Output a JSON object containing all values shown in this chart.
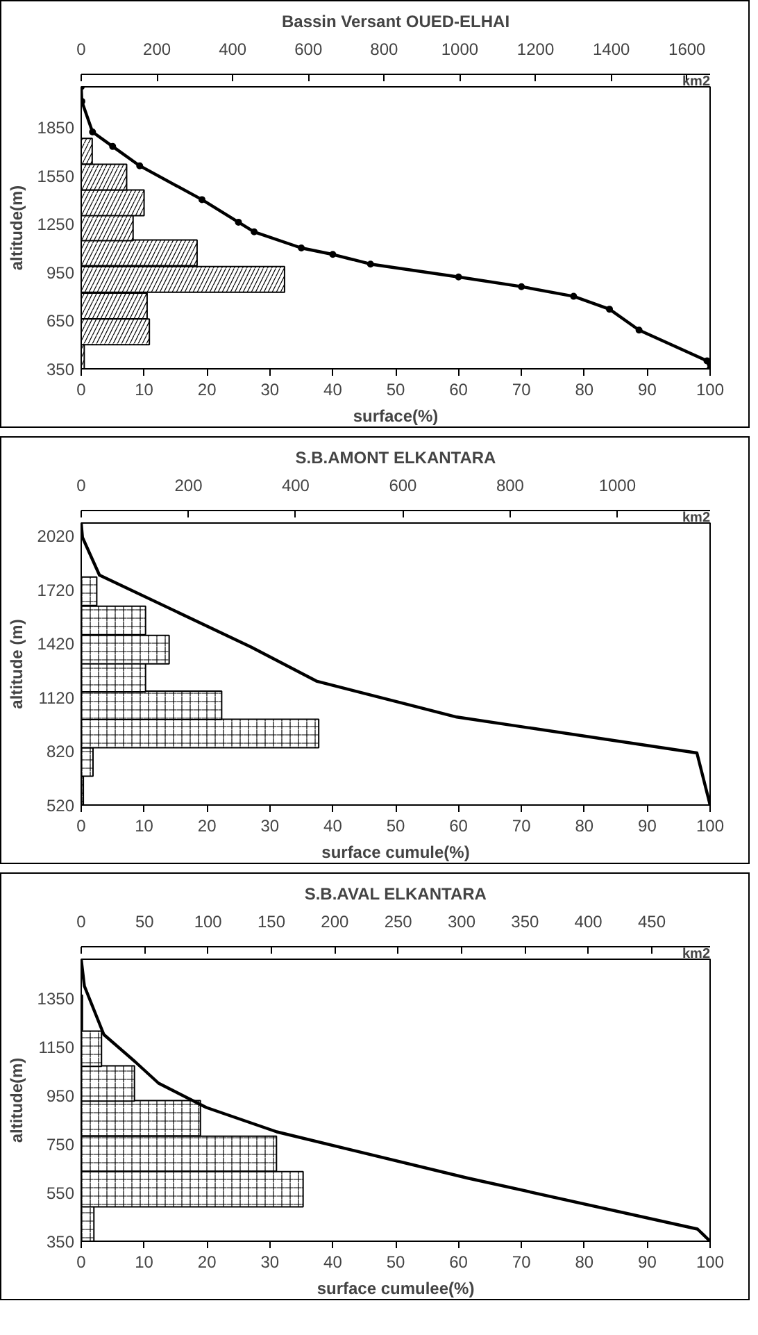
{
  "chart_data": [
    {
      "type": "line",
      "orientation": "horizontal",
      "title": "Bassin Versant OUED-ELHAI",
      "xlabel": "surface(%)",
      "ylabel": "altitude(m)",
      "x2label": "km2",
      "grid": false,
      "marker": "circle",
      "xlim": [
        0,
        100
      ],
      "xticks": [
        0,
        10,
        20,
        30,
        40,
        50,
        60,
        70,
        80,
        90,
        100
      ],
      "ylim": [
        350,
        2100
      ],
      "yticks": [
        350,
        650,
        950,
        1250,
        1550,
        1850
      ],
      "x2lim": [
        0,
        1661
      ],
      "x2ticks": [
        0,
        200,
        400,
        600,
        800,
        1000,
        1200,
        1400,
        1600
      ],
      "series": [
        {
          "type": "bar",
          "axis": "x2",
          "color": "#000000",
          "x": [
            425,
            580,
            740,
            905,
            1070,
            1225,
            1380,
            1540,
            1700
          ],
          "values": [
            8,
            180,
            174,
            537,
            306,
            137,
            166,
            120,
            29
          ]
        },
        {
          "color": "#000000",
          "x": [
            2100,
            2010,
            1820,
            1730,
            1610,
            1400,
            1260,
            1200,
            1100,
            1060,
            1000,
            920,
            860,
            800,
            720,
            590,
            400,
            350
          ],
          "values": [
            0,
            0.1,
            1.8,
            5,
            9.3,
            19.2,
            25,
            27.5,
            35,
            40,
            46,
            60,
            70,
            78.3,
            84,
            88.7,
            99.5,
            100
          ]
        }
      ]
    },
    {
      "type": "line",
      "orientation": "horizontal",
      "title": "S.B.AMONT ELKANTARA",
      "xlabel": "surface cumule(%)",
      "ylabel": "altitude (m)",
      "x2label": "km2",
      "grid": false,
      "xlim": [
        0,
        100
      ],
      "xticks": [
        0,
        10,
        20,
        30,
        40,
        50,
        60,
        70,
        80,
        90,
        100
      ],
      "ylim": [
        520,
        2090
      ],
      "yticks": [
        520,
        820,
        1120,
        1420,
        1720,
        2020
      ],
      "x2lim": [
        0,
        1173
      ],
      "x2ticks": [
        0,
        200,
        400,
        600,
        800,
        1000
      ],
      "series": [
        {
          "type": "bar",
          "axis": "x2",
          "color": "#000000",
          "x": [
            600,
            760,
            918,
            1075,
            1230,
            1385,
            1548,
            1710
          ],
          "values": [
            4,
            22,
            443,
            262,
            120,
            164,
            120,
            29
          ]
        },
        {
          "color": "#000000",
          "x": [
            2090,
            2010,
            1800,
            1400,
            1210,
            1010,
            810,
            520
          ],
          "values": [
            0,
            0.2,
            2.9,
            27,
            37.4,
            59.7,
            97.9,
            100
          ]
        }
      ]
    },
    {
      "type": "line",
      "orientation": "horizontal",
      "title": "S.B.AVAL ELKANTARA",
      "xlabel": "surface cumulee(%)",
      "ylabel": "altitude(m)",
      "x2label": "km2",
      "grid": false,
      "xlim": [
        0,
        100
      ],
      "xticks": [
        0,
        10,
        20,
        30,
        40,
        50,
        60,
        70,
        80,
        90,
        100
      ],
      "ylim": [
        350,
        1510
      ],
      "yticks": [
        350,
        550,
        750,
        950,
        1150,
        1350
      ],
      "x2lim": [
        0,
        496
      ],
      "x2ticks": [
        0,
        50,
        100,
        150,
        200,
        250,
        300,
        350,
        400,
        450
      ],
      "series": [
        {
          "type": "bar",
          "axis": "x2",
          "color": "#000000",
          "x": [
            421,
            564,
            710,
            856,
            999,
            1142,
            1290
          ],
          "values": [
            10,
            175,
            154,
            94,
            42,
            16,
            1
          ]
        },
        {
          "color": "#000000",
          "x": [
            1510,
            1400,
            1200,
            1090,
            1000,
            900,
            800,
            610,
            400,
            350
          ],
          "values": [
            0,
            0.5,
            3.6,
            8.5,
            12.3,
            19.9,
            31.1,
            61.4,
            98,
            100
          ]
        }
      ]
    }
  ]
}
